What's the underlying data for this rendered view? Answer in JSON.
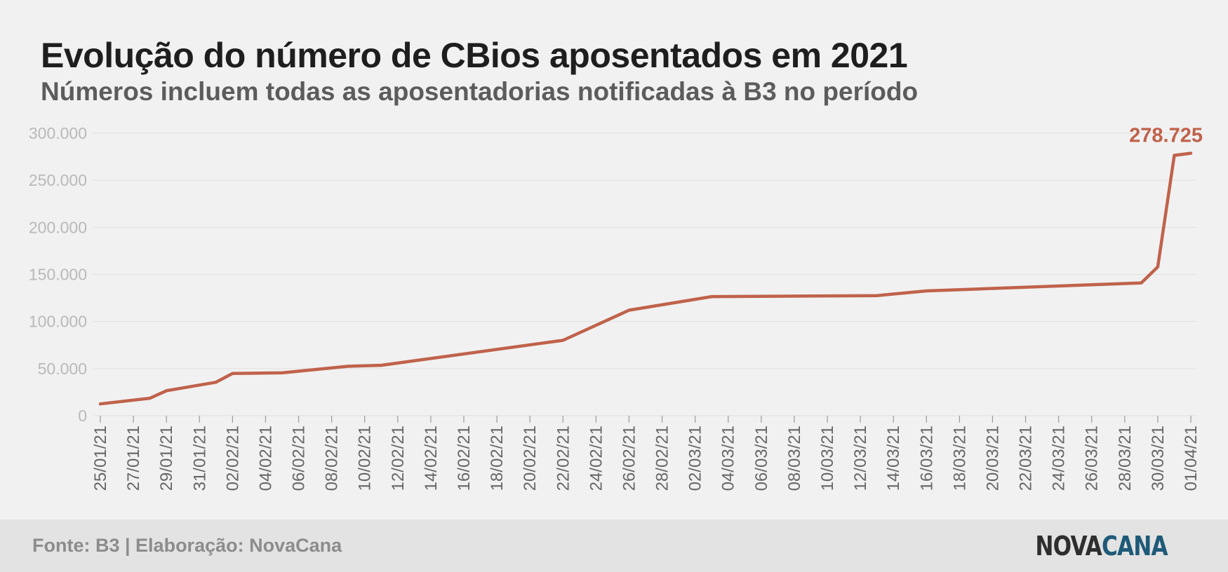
{
  "title": "Evolução do número de CBios aposentados em 2021",
  "subtitle": "Números incluem todas as aposentadorias notificadas à B3 no período",
  "footer": {
    "source": "Fonte: B3 | Elaboração: NovaCana",
    "logo_part1": "NOVA",
    "logo_part2": "CANA"
  },
  "colors": {
    "line": "#c0624b",
    "grid": "#e0e0e0",
    "footer_bg": "#e3e3e3"
  },
  "chart_data": {
    "type": "line",
    "title": "Evolução do número de CBios aposentados em 2021",
    "subtitle": "Números incluem todas as aposentadorias notificadas à B3 no período",
    "xlabel": "",
    "ylabel": "",
    "ylim": [
      0,
      300000
    ],
    "yticks": [
      0,
      50000,
      100000,
      150000,
      200000,
      250000,
      300000
    ],
    "ytick_labels": [
      "0",
      "50.000",
      "100.000",
      "150.000",
      "200.000",
      "250.000",
      "300.000"
    ],
    "xtick_labels": [
      "25/01/21",
      "27/01/21",
      "29/01/21",
      "31/01/21",
      "02/02/21",
      "04/02/21",
      "06/02/21",
      "08/02/21",
      "10/02/21",
      "12/02/21",
      "14/02/21",
      "16/02/21",
      "18/02/21",
      "20/02/21",
      "22/02/21",
      "24/02/21",
      "26/02/21",
      "28/02/21",
      "02/03/21",
      "04/03/21",
      "06/03/21",
      "08/03/21",
      "10/03/21",
      "12/03/21",
      "14/03/21",
      "16/03/21",
      "18/03/21",
      "20/03/21",
      "22/03/21",
      "24/03/21",
      "26/03/21",
      "28/03/21",
      "30/03/21",
      "01/04/21"
    ],
    "grid": true,
    "annotation": {
      "text": "278.725",
      "x": "01/04/21",
      "y": 278725
    },
    "series": [
      {
        "color": "#c0624b",
        "points": [
          {
            "x": "25/01/21",
            "y": 12500
          },
          {
            "x": "28/01/21",
            "y": 18500
          },
          {
            "x": "29/01/21",
            "y": 26500
          },
          {
            "x": "01/02/21",
            "y": 35500
          },
          {
            "x": "02/02/21",
            "y": 44800
          },
          {
            "x": "03/02/21",
            "y": 45000
          },
          {
            "x": "05/02/21",
            "y": 45500
          },
          {
            "x": "09/02/21",
            "y": 52500
          },
          {
            "x": "11/02/21",
            "y": 53500
          },
          {
            "x": "22/02/21",
            "y": 80000
          },
          {
            "x": "26/02/21",
            "y": 112000
          },
          {
            "x": "03/03/21",
            "y": 126500
          },
          {
            "x": "13/03/21",
            "y": 127500
          },
          {
            "x": "16/03/21",
            "y": 132500
          },
          {
            "x": "29/03/21",
            "y": 141000
          },
          {
            "x": "30/03/21",
            "y": 158000
          },
          {
            "x": "31/03/21",
            "y": 276500
          },
          {
            "x": "01/04/21",
            "y": 278725
          }
        ]
      }
    ]
  }
}
